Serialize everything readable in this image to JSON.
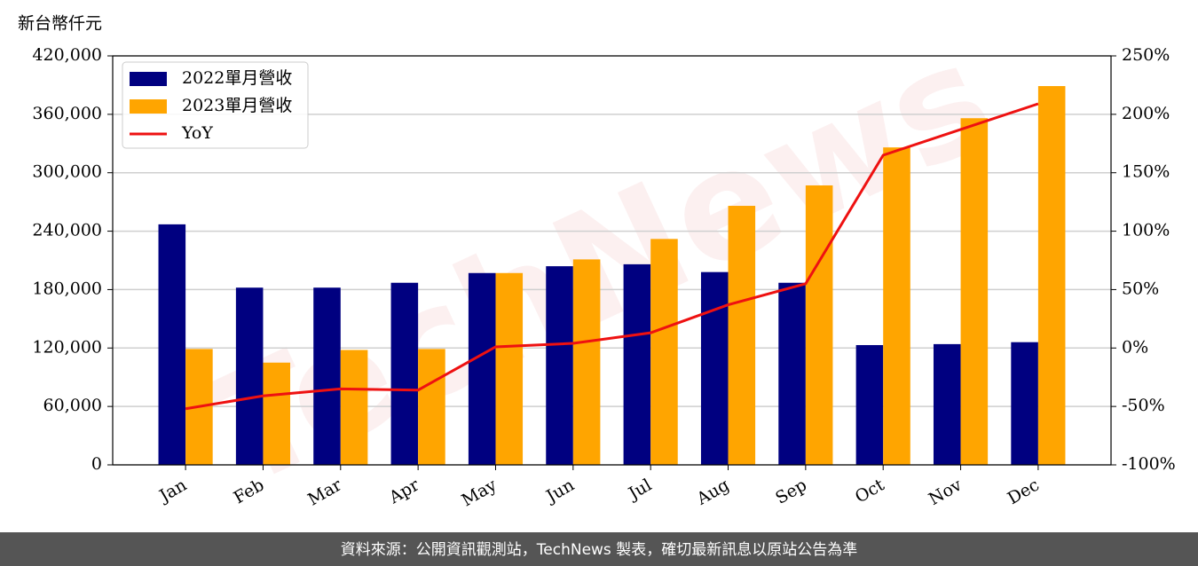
{
  "chart_data": {
    "type": "bar_line",
    "y_label": "新台幣仟元",
    "watermark": "TechNews",
    "footer": "資料來源：公開資訊觀測站，TechNews 製表，確切最新訊息以原站公告為準",
    "categories": [
      "Jan",
      "Feb",
      "Mar",
      "Apr",
      "May",
      "Jun",
      "Jul",
      "Aug",
      "Sep",
      "Oct",
      "Nov",
      "Dec"
    ],
    "series": [
      {
        "name": "2022單月營收",
        "color": "#000080",
        "type": "bar",
        "values": [
          247000,
          182000,
          182000,
          187000,
          197000,
          204000,
          206000,
          198000,
          187000,
          123000,
          124000,
          126000
        ]
      },
      {
        "name": "2023單月營收",
        "color": "#ffa500",
        "type": "bar",
        "values": [
          119000,
          105000,
          118000,
          119000,
          197000,
          211000,
          232000,
          266000,
          287000,
          326000,
          356000,
          389000
        ]
      },
      {
        "name": "YoY",
        "color": "#ee1111",
        "type": "line",
        "axis": "y2",
        "values": [
          -52,
          -41,
          -35,
          -36,
          1,
          4,
          13,
          37,
          55,
          165,
          187,
          209
        ]
      }
    ],
    "ylim": [
      0,
      420000
    ],
    "yticks": [
      0,
      {
        "value": 60000,
        "label": "60,000"
      },
      {
        "value": 120000,
        "label": "120,000"
      },
      {
        "value": 180000,
        "label": "180,000"
      },
      {
        "value": 240000,
        "label": "240,000"
      },
      {
        "value": 300000,
        "label": "300,000"
      },
      {
        "value": 360000,
        "label": "360,000"
      },
      {
        "value": 420000,
        "label": "420,000"
      }
    ],
    "y2lim": [
      -100,
      250
    ],
    "y2ticks": [
      {
        "value": -100,
        "label": "-100%"
      },
      {
        "value": -50,
        "label": "-50%"
      },
      {
        "value": 0,
        "label": "0%"
      },
      {
        "value": 50,
        "label": "50%"
      },
      {
        "value": 100,
        "label": "100%"
      },
      {
        "value": 150,
        "label": "150%"
      },
      {
        "value": 200,
        "label": "200%"
      },
      {
        "value": 250,
        "label": "250%"
      }
    ],
    "grid": true,
    "legend": "upper left"
  }
}
